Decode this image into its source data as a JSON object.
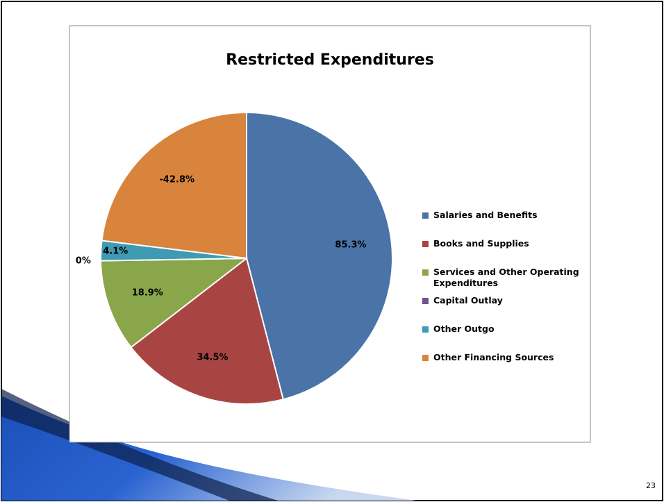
{
  "chart_data": {
    "type": "pie",
    "title": "Restricted Expenditures",
    "categories": [
      "Salaries and Benefits",
      "Books and Supplies",
      "Services and Other Operating Expenditures",
      "Capital Outlay",
      "Other Outgo",
      "Other Financing Sources"
    ],
    "values": [
      85.3,
      34.5,
      18.9,
      0,
      4.1,
      -42.8
    ],
    "value_labels": [
      "85.3%",
      "34.5%",
      "18.9%",
      "0%",
      "4.1%",
      "-42.8%"
    ],
    "colors": [
      "#4a73a8",
      "#a84543",
      "#8aa64a",
      "#6e548f",
      "#3e9bb3",
      "#d9843c"
    ],
    "legend": "right"
  },
  "page_number": "23"
}
